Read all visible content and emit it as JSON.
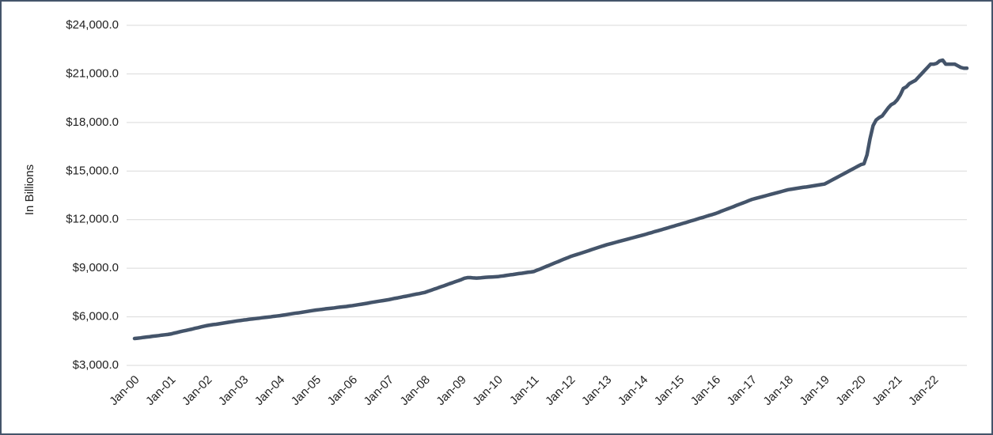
{
  "chart_data": {
    "type": "line",
    "axis_label_y": "In Billions",
    "categories": [
      "Jan-00",
      null,
      null,
      null,
      null,
      null,
      null,
      null,
      null,
      null,
      null,
      null,
      "Jan-01",
      null,
      null,
      null,
      null,
      null,
      null,
      null,
      null,
      null,
      null,
      null,
      "Jan-02",
      null,
      null,
      null,
      null,
      null,
      null,
      null,
      null,
      null,
      null,
      null,
      "Jan-03",
      null,
      null,
      null,
      null,
      null,
      null,
      null,
      null,
      null,
      null,
      null,
      "Jan-04",
      null,
      null,
      null,
      null,
      null,
      null,
      null,
      null,
      null,
      null,
      null,
      "Jan-05",
      null,
      null,
      null,
      null,
      null,
      null,
      null,
      null,
      null,
      null,
      null,
      "Jan-06",
      null,
      null,
      null,
      null,
      null,
      null,
      null,
      null,
      null,
      null,
      null,
      "Jan-07",
      null,
      null,
      null,
      null,
      null,
      null,
      null,
      null,
      null,
      null,
      null,
      "Jan-08",
      null,
      null,
      null,
      null,
      null,
      null,
      null,
      null,
      null,
      null,
      null,
      "Jan-09",
      null,
      null,
      null,
      null,
      null,
      null,
      null,
      null,
      null,
      null,
      null,
      "Jan-10",
      null,
      null,
      null,
      null,
      null,
      null,
      null,
      null,
      null,
      null,
      null,
      "Jan-11",
      null,
      null,
      null,
      null,
      null,
      null,
      null,
      null,
      null,
      null,
      null,
      "Jan-12",
      null,
      null,
      null,
      null,
      null,
      null,
      null,
      null,
      null,
      null,
      null,
      "Jan-13",
      null,
      null,
      null,
      null,
      null,
      null,
      null,
      null,
      null,
      null,
      null,
      "Jan-14",
      null,
      null,
      null,
      null,
      null,
      null,
      null,
      null,
      null,
      null,
      null,
      "Jan-15",
      null,
      null,
      null,
      null,
      null,
      null,
      null,
      null,
      null,
      null,
      null,
      "Jan-16",
      null,
      null,
      null,
      null,
      null,
      null,
      null,
      null,
      null,
      null,
      null,
      "Jan-17",
      null,
      null,
      null,
      null,
      null,
      null,
      null,
      null,
      null,
      null,
      null,
      "Jan-18",
      null,
      null,
      null,
      null,
      null,
      null,
      null,
      null,
      null,
      null,
      null,
      "Jan-19",
      null,
      null,
      null,
      null,
      null,
      null,
      null,
      null,
      null,
      null,
      null,
      "Jan-20",
      null,
      null,
      null,
      null,
      null,
      null,
      null,
      null,
      null,
      null,
      null,
      "Jan-21",
      null,
      null,
      null,
      null,
      null,
      null,
      null,
      null,
      null,
      null,
      null,
      "Jan-22",
      null,
      null,
      null,
      null,
      null,
      null,
      null,
      null,
      null,
      null,
      null
    ],
    "series": [
      {
        "color": "#44546a",
        "values": [
          4660,
          4680,
          4700,
          4730,
          4750,
          4770,
          4800,
          4820,
          4840,
          4870,
          4890,
          4910,
          4940,
          4990,
          5030,
          5080,
          5120,
          5160,
          5200,
          5240,
          5290,
          5330,
          5380,
          5420,
          5460,
          5490,
          5520,
          5540,
          5570,
          5600,
          5630,
          5660,
          5690,
          5720,
          5750,
          5770,
          5800,
          5820,
          5850,
          5870,
          5890,
          5910,
          5940,
          5960,
          5980,
          6000,
          6030,
          6050,
          6070,
          6100,
          6130,
          6160,
          6190,
          6220,
          6240,
          6270,
          6300,
          6330,
          6360,
          6390,
          6420,
          6440,
          6460,
          6490,
          6510,
          6530,
          6550,
          6580,
          6600,
          6620,
          6640,
          6670,
          6690,
          6720,
          6750,
          6780,
          6810,
          6840,
          6880,
          6910,
          6940,
          6970,
          7000,
          7030,
          7060,
          7100,
          7140,
          7170,
          7210,
          7250,
          7280,
          7320,
          7360,
          7400,
          7430,
          7470,
          7510,
          7580,
          7640,
          7710,
          7770,
          7840,
          7900,
          7970,
          8040,
          8100,
          8170,
          8230,
          8300,
          8380,
          8420,
          8420,
          8400,
          8390,
          8400,
          8420,
          8440,
          8450,
          8460,
          8470,
          8480,
          8510,
          8530,
          8560,
          8590,
          8610,
          8640,
          8670,
          8690,
          8720,
          8750,
          8770,
          8800,
          8880,
          8950,
          9030,
          9110,
          9180,
          9260,
          9340,
          9410,
          9490,
          9570,
          9640,
          9720,
          9780,
          9840,
          9900,
          9960,
          10020,
          10080,
          10150,
          10210,
          10270,
          10330,
          10390,
          10450,
          10500,
          10550,
          10600,
          10650,
          10700,
          10750,
          10800,
          10850,
          10900,
          10950,
          11000,
          11050,
          11100,
          11160,
          11210,
          11270,
          11320,
          11370,
          11430,
          11480,
          11540,
          11590,
          11650,
          11700,
          11760,
          11810,
          11870,
          11930,
          11980,
          12040,
          12100,
          12150,
          12210,
          12270,
          12320,
          12380,
          12450,
          12530,
          12600,
          12670,
          12740,
          12810,
          12890,
          12960,
          13030,
          13100,
          13180,
          13250,
          13300,
          13350,
          13400,
          13450,
          13500,
          13550,
          13600,
          13650,
          13700,
          13750,
          13800,
          13850,
          13880,
          13910,
          13940,
          13970,
          14000,
          14020,
          14050,
          14080,
          14110,
          14140,
          14170,
          14200,
          14300,
          14400,
          14500,
          14600,
          14700,
          14800,
          14900,
          15000,
          15100,
          15200,
          15300,
          15400,
          15450,
          16000,
          17000,
          17800,
          18150,
          18300,
          18400,
          18650,
          18900,
          19100,
          19200,
          19400,
          19700,
          20100,
          20200,
          20400,
          20500,
          20600,
          20800,
          21000,
          21200,
          21400,
          21600,
          21600,
          21650,
          21800,
          21850,
          21600,
          21600,
          21600,
          21600,
          21500,
          21400,
          21350,
          21350
        ]
      }
    ],
    "ylim": [
      3000,
      24000
    ],
    "yticks": [
      {
        "value": 3000,
        "label": "$3,000.0"
      },
      {
        "value": 6000,
        "label": "$6,000.0"
      },
      {
        "value": 9000,
        "label": "$9,000.0"
      },
      {
        "value": 12000,
        "label": "$12,000.0"
      },
      {
        "value": 15000,
        "label": "$15,000.0"
      },
      {
        "value": 18000,
        "label": "$18,000.0"
      },
      {
        "value": 21000,
        "label": "$21,000.0"
      },
      {
        "value": 24000,
        "label": "$24,000.0"
      }
    ],
    "grid": true
  }
}
